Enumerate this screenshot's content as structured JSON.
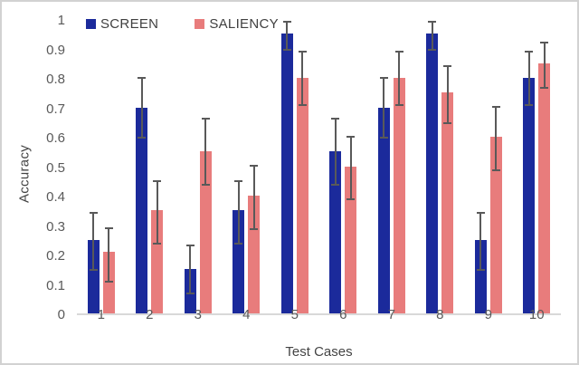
{
  "chart_data": {
    "type": "bar",
    "title": "",
    "xlabel": "Test Cases",
    "ylabel": "Accuracy",
    "categories": [
      "1",
      "2",
      "3",
      "4",
      "5",
      "6",
      "7",
      "8",
      "9",
      "10"
    ],
    "series": [
      {
        "name": "SCREEN",
        "color": "#1b2a9b",
        "values": [
          0.25,
          0.7,
          0.15,
          0.35,
          0.95,
          0.55,
          0.7,
          0.95,
          0.25,
          0.8
        ],
        "error_low": [
          0.15,
          0.6,
          0.07,
          0.24,
          0.9,
          0.44,
          0.6,
          0.9,
          0.15,
          0.71
        ],
        "error_high": [
          0.35,
          0.81,
          0.24,
          0.46,
          1.0,
          0.67,
          0.81,
          1.0,
          0.35,
          0.9
        ]
      },
      {
        "name": "SALIENCY",
        "color": "#e87c7c",
        "values": [
          0.21,
          0.35,
          0.55,
          0.4,
          0.8,
          0.5,
          0.8,
          0.75,
          0.6,
          0.85
        ],
        "error_low": [
          0.11,
          0.24,
          0.44,
          0.29,
          0.71,
          0.39,
          0.71,
          0.65,
          0.49,
          0.77
        ],
        "error_high": [
          0.3,
          0.46,
          0.67,
          0.51,
          0.9,
          0.61,
          0.9,
          0.85,
          0.71,
          0.93
        ]
      }
    ],
    "ylim": [
      0,
      1
    ],
    "yticks": [
      "1",
      "0.9",
      "0.8",
      "0.7",
      "0.6",
      "0.5",
      "0.4",
      "0.3",
      "0.2",
      "0.1",
      "0"
    ],
    "grid": false,
    "legend_position": "top-left",
    "error_bar_color": "#595959",
    "axis_line_color": "#d9d9d9",
    "tick_text_color": "#595959",
    "axis_title_color": "#444444"
  }
}
